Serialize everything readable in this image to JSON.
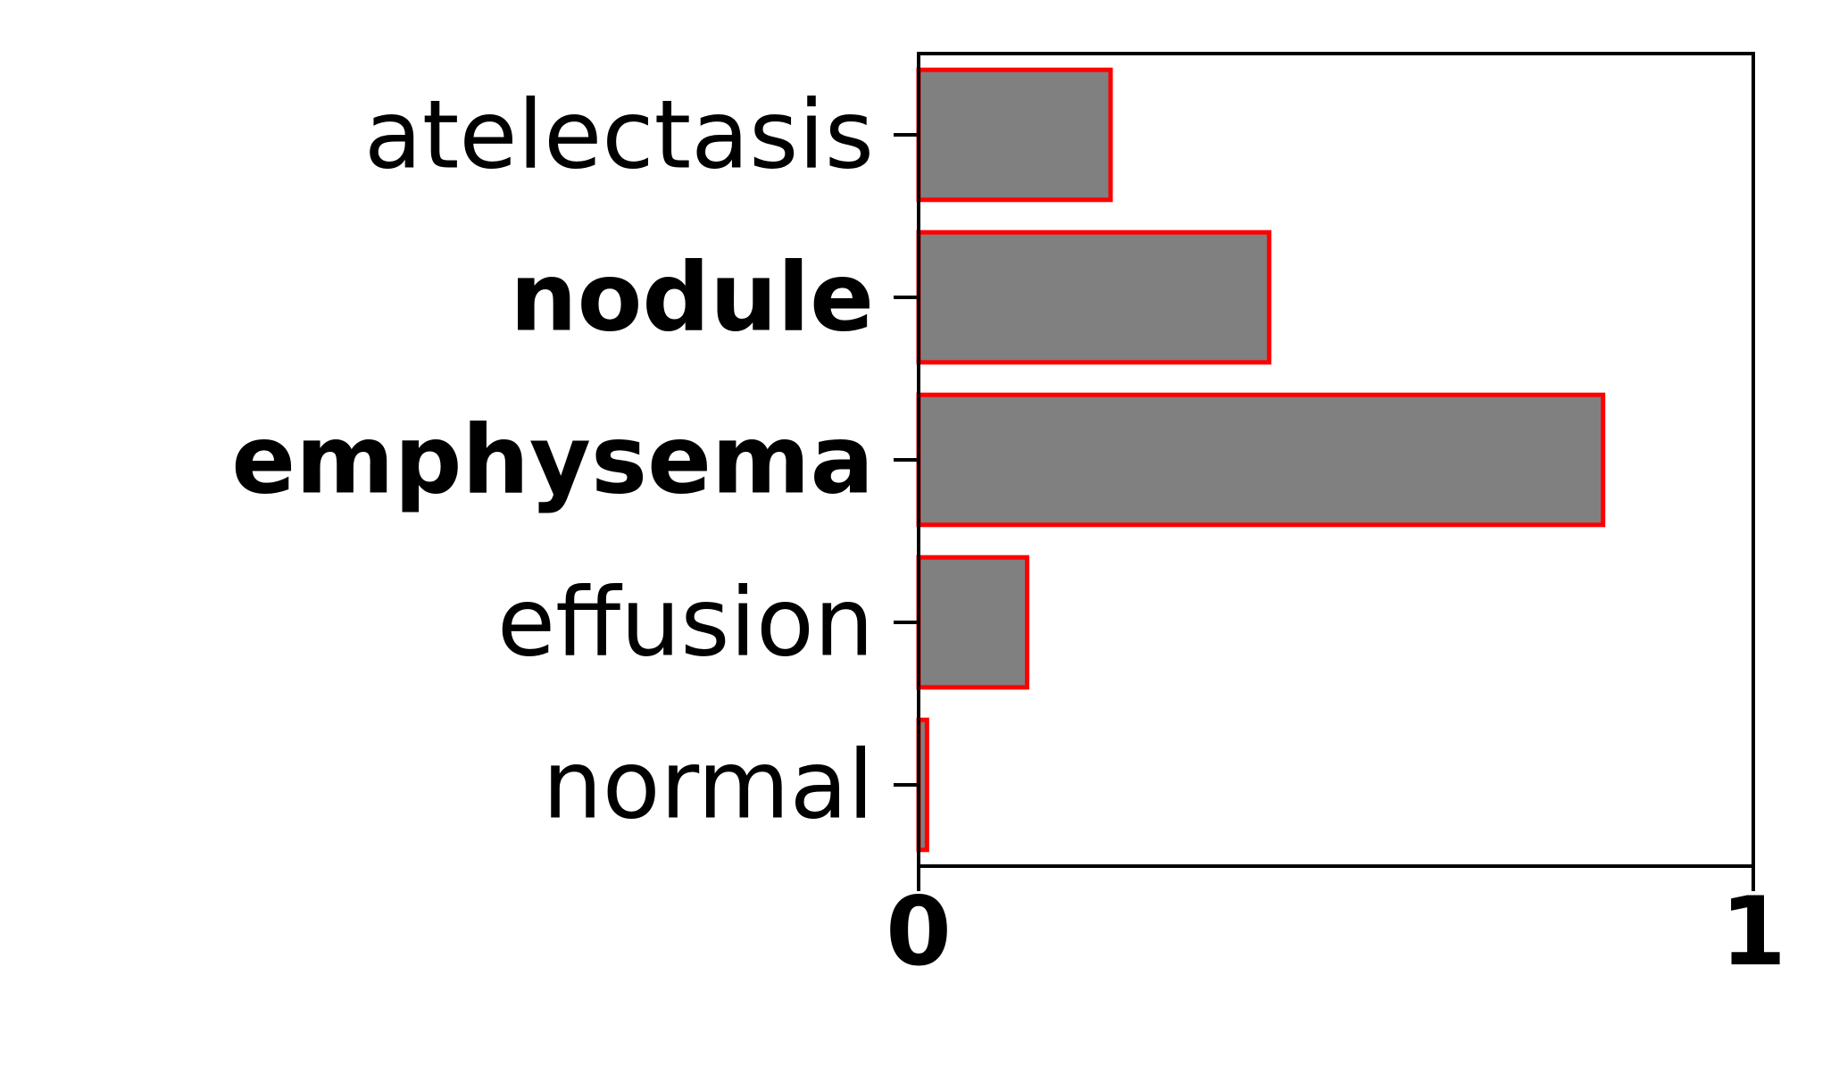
{
  "chart_data": {
    "type": "bar",
    "orientation": "horizontal",
    "title": "",
    "xlabel": "",
    "ylabel": "",
    "categories": [
      "atelectasis",
      "nodule",
      "emphysema",
      "effusion",
      "normal"
    ],
    "bold_categories": [
      "nodule",
      "emphysema"
    ],
    "values": [
      0.23,
      0.42,
      0.82,
      0.13,
      0.01
    ],
    "xlim": [
      0,
      1
    ],
    "x_ticks": [
      {
        "value": 0,
        "label": "0"
      },
      {
        "value": 1,
        "label": "1"
      }
    ],
    "grid": false,
    "legend": "none",
    "colors": {
      "bar_fill": "#808080",
      "bar_edge": "#ff0000",
      "axis": "#000000"
    }
  }
}
